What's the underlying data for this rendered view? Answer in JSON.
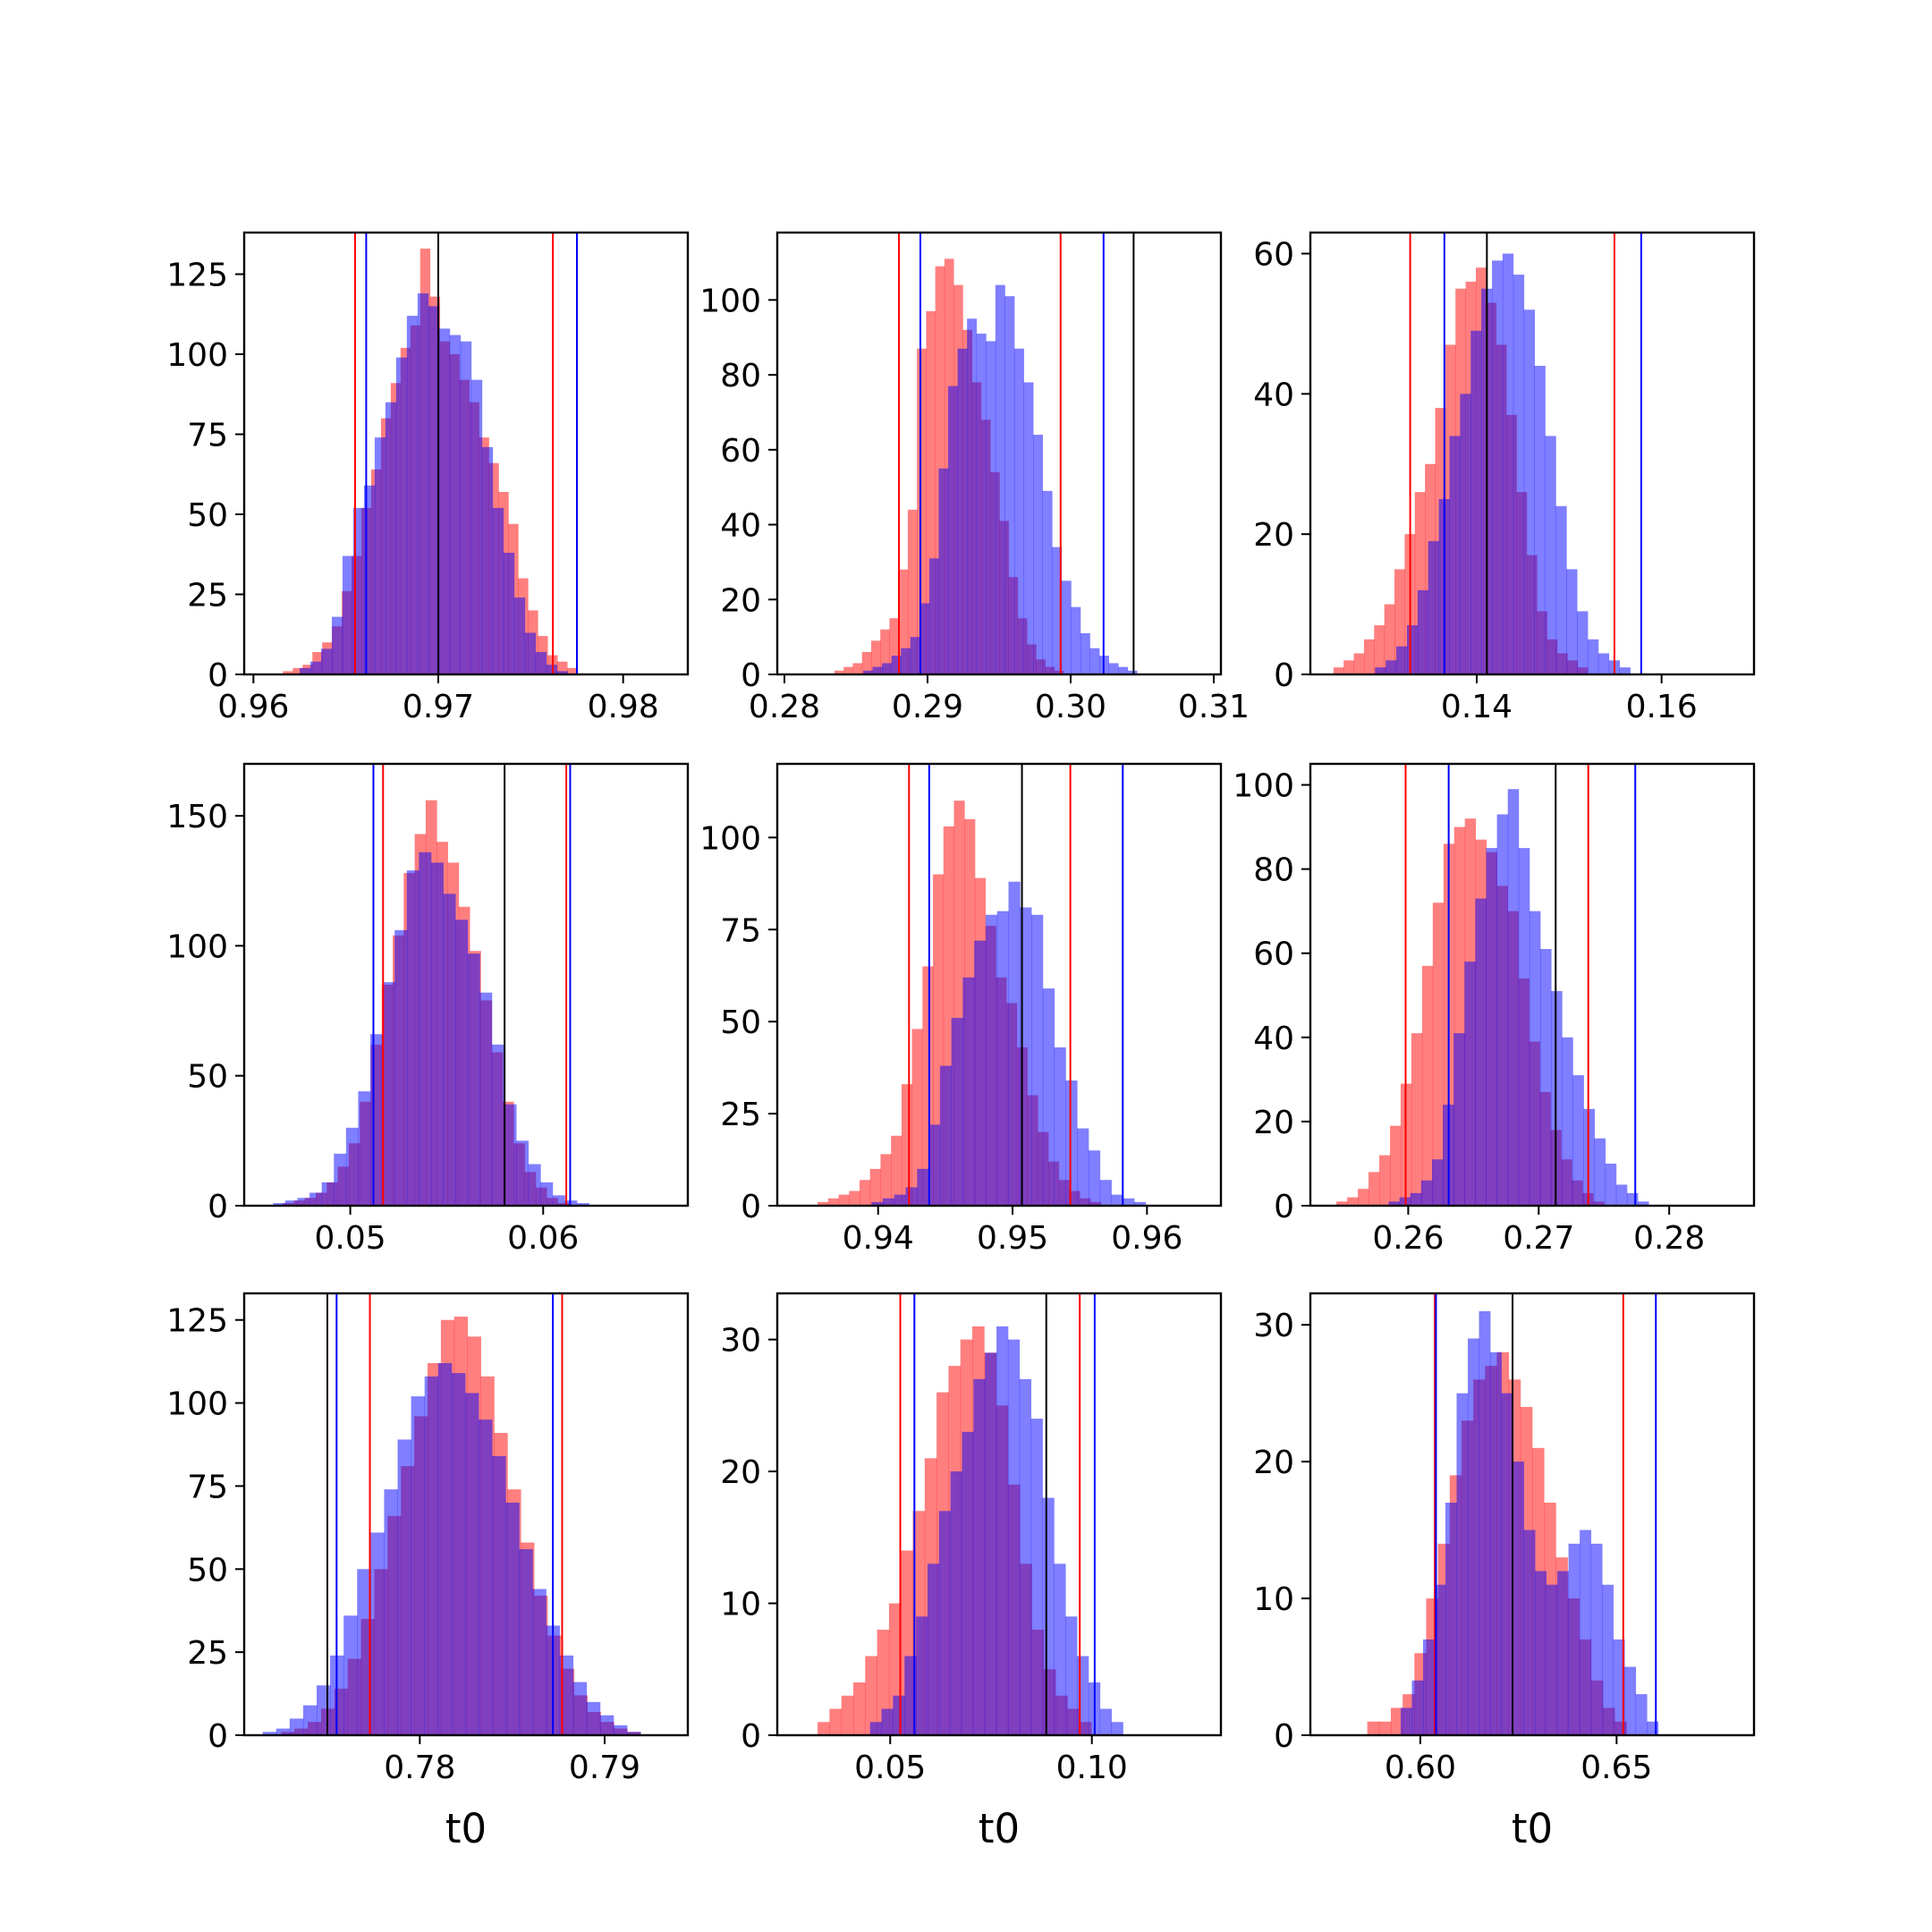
{
  "figure": {
    "background": "#ffffff"
  },
  "colors": {
    "red_hist": "#ff0000",
    "blue_hist": "#0000ff",
    "red_line": "#ff0000",
    "blue_line": "#0000ff",
    "center_line": "#000000"
  },
  "chart_data": [
    {
      "type": "bar",
      "subtype": "histogram-overlay",
      "xlim": [
        0.9595,
        0.9835
      ],
      "ylim": [
        0,
        138
      ],
      "xticks": [
        0.96,
        0.97,
        0.98
      ],
      "xtick_labels": [
        "0.96",
        "0.97",
        "0.98"
      ],
      "yticks": [
        0,
        25,
        50,
        75,
        100,
        125
      ],
      "ytick_labels": [
        "0",
        "25",
        "50",
        "75",
        "100",
        "125"
      ],
      "xlabel": "",
      "series": [
        {
          "color": "red",
          "bin_start": 0.9616,
          "bin_width": 0.00053,
          "counts": [
            1,
            2,
            3,
            7,
            10,
            15,
            26,
            37,
            52,
            64,
            80,
            91,
            102,
            109,
            133,
            118,
            104,
            100,
            92,
            85,
            74,
            66,
            57,
            47,
            30,
            20,
            12,
            6,
            4,
            2
          ]
        },
        {
          "color": "blue",
          "bin_start": 0.9625,
          "bin_width": 0.00058,
          "counts": [
            2,
            4,
            8,
            18,
            37,
            52,
            59,
            74,
            85,
            99,
            112,
            119,
            115,
            108,
            106,
            104,
            92,
            71,
            52,
            38,
            24,
            13,
            7,
            3,
            1
          ]
        }
      ],
      "vlines": [
        {
          "x": 0.9655,
          "color": "red"
        },
        {
          "x": 0.9762,
          "color": "red"
        },
        {
          "x": 0.9661,
          "color": "blue"
        },
        {
          "x": 0.9775,
          "color": "blue"
        },
        {
          "x": 0.97,
          "color": "black"
        }
      ]
    },
    {
      "type": "bar",
      "subtype": "histogram-overlay",
      "xlim": [
        0.2795,
        0.3105
      ],
      "ylim": [
        0,
        118
      ],
      "xticks": [
        0.28,
        0.29,
        0.3,
        0.31
      ],
      "xtick_labels": [
        "0.28",
        "0.29",
        "0.30",
        "0.31"
      ],
      "yticks": [
        0,
        20,
        40,
        60,
        80,
        100
      ],
      "ytick_labels": [
        "0",
        "20",
        "40",
        "60",
        "80",
        "100"
      ],
      "xlabel": "",
      "series": [
        {
          "color": "red",
          "bin_start": 0.2835,
          "bin_width": 0.00064,
          "counts": [
            1,
            2,
            3,
            6,
            9,
            12,
            15,
            28,
            44,
            87,
            97,
            109,
            111,
            104,
            92,
            78,
            68,
            54,
            41,
            26,
            15,
            8,
            4,
            2,
            1
          ]
        },
        {
          "color": "blue",
          "bin_start": 0.2855,
          "bin_width": 0.00066,
          "counts": [
            1,
            2,
            3,
            5,
            7,
            10,
            19,
            31,
            55,
            77,
            87,
            95,
            91,
            89,
            104,
            101,
            87,
            78,
            64,
            49,
            34,
            25,
            18,
            11,
            7,
            5,
            3,
            2,
            1
          ]
        }
      ],
      "vlines": [
        {
          "x": 0.288,
          "color": "red"
        },
        {
          "x": 0.2993,
          "color": "red"
        },
        {
          "x": 0.2895,
          "color": "blue"
        },
        {
          "x": 0.3023,
          "color": "blue"
        },
        {
          "x": 0.3044,
          "color": "black"
        }
      ]
    },
    {
      "type": "bar",
      "subtype": "histogram-overlay",
      "xlim": [
        0.122,
        0.17
      ],
      "ylim": [
        0,
        63
      ],
      "xticks": [
        0.14,
        0.16
      ],
      "xtick_labels": [
        "0.14",
        "0.16"
      ],
      "yticks": [
        0,
        20,
        40,
        60
      ],
      "ytick_labels": [
        "0",
        "20",
        "40",
        "60"
      ],
      "xlabel": "",
      "series": [
        {
          "color": "red",
          "bin_start": 0.1245,
          "bin_width": 0.0011,
          "counts": [
            1,
            2,
            3,
            5,
            7,
            10,
            15,
            20,
            26,
            30,
            38,
            47,
            55,
            56,
            58,
            53,
            47,
            37,
            26,
            17,
            9,
            5,
            3,
            2,
            1
          ]
        },
        {
          "color": "blue",
          "bin_start": 0.129,
          "bin_width": 0.00115,
          "counts": [
            1,
            2,
            4,
            7,
            12,
            19,
            25,
            34,
            40,
            49,
            55,
            59,
            60,
            57,
            52,
            44,
            34,
            24,
            15,
            9,
            5,
            3,
            2,
            1
          ]
        }
      ],
      "vlines": [
        {
          "x": 0.1328,
          "color": "red"
        },
        {
          "x": 0.1549,
          "color": "red"
        },
        {
          "x": 0.1365,
          "color": "blue"
        },
        {
          "x": 0.1578,
          "color": "blue"
        },
        {
          "x": 0.1411,
          "color": "black"
        }
      ]
    },
    {
      "type": "bar",
      "subtype": "histogram-overlay",
      "xlim": [
        0.0445,
        0.0675
      ],
      "ylim": [
        0,
        170
      ],
      "xticks": [
        0.05,
        0.06
      ],
      "xtick_labels": [
        "0.05",
        "0.06"
      ],
      "yticks": [
        0,
        50,
        100,
        150
      ],
      "ytick_labels": [
        "0",
        "50",
        "100",
        "150"
      ],
      "xlabel": "",
      "series": [
        {
          "color": "red",
          "bin_start": 0.0465,
          "bin_width": 0.00057,
          "counts": [
            1,
            2,
            3,
            5,
            9,
            15,
            24,
            40,
            62,
            85,
            104,
            128,
            143,
            156,
            140,
            132,
            115,
            98,
            79,
            59,
            40,
            24,
            13,
            7,
            3,
            1
          ]
        },
        {
          "color": "blue",
          "bin_start": 0.046,
          "bin_width": 0.00063,
          "counts": [
            1,
            2,
            3,
            5,
            9,
            20,
            30,
            44,
            66,
            86,
            106,
            129,
            136,
            132,
            120,
            110,
            97,
            82,
            62,
            39,
            25,
            16,
            9,
            4,
            2,
            1
          ]
        }
      ],
      "vlines": [
        {
          "x": 0.0517,
          "color": "red"
        },
        {
          "x": 0.0612,
          "color": "red"
        },
        {
          "x": 0.0512,
          "color": "blue"
        },
        {
          "x": 0.0614,
          "color": "blue"
        },
        {
          "x": 0.058,
          "color": "black"
        }
      ]
    },
    {
      "type": "bar",
      "subtype": "histogram-overlay",
      "xlim": [
        0.9325,
        0.9655
      ],
      "ylim": [
        0,
        120
      ],
      "xticks": [
        0.94,
        0.95,
        0.96
      ],
      "xtick_labels": [
        "0.94",
        "0.95",
        "0.96"
      ],
      "yticks": [
        0,
        25,
        50,
        75,
        100
      ],
      "ytick_labels": [
        "0",
        "25",
        "50",
        "75",
        "100"
      ],
      "xlabel": "",
      "series": [
        {
          "color": "red",
          "bin_start": 0.9355,
          "bin_width": 0.00078,
          "counts": [
            1,
            2,
            3,
            4,
            7,
            10,
            14,
            19,
            33,
            48,
            65,
            90,
            103,
            110,
            105,
            89,
            76,
            62,
            55,
            43,
            30,
            20,
            12,
            7,
            4,
            2,
            1
          ]
        },
        {
          "color": "blue",
          "bin_start": 0.9395,
          "bin_width": 0.00085,
          "counts": [
            1,
            2,
            3,
            5,
            10,
            22,
            38,
            51,
            62,
            72,
            79,
            80,
            88,
            81,
            79,
            59,
            43,
            34,
            21,
            15,
            7,
            3,
            2,
            1
          ]
        }
      ],
      "vlines": [
        {
          "x": 0.9423,
          "color": "red"
        },
        {
          "x": 0.9543,
          "color": "red"
        },
        {
          "x": 0.9438,
          "color": "blue"
        },
        {
          "x": 0.9582,
          "color": "blue"
        },
        {
          "x": 0.9507,
          "color": "black"
        }
      ]
    },
    {
      "type": "bar",
      "subtype": "histogram-overlay",
      "xlim": [
        0.2525,
        0.2865
      ],
      "ylim": [
        0,
        105
      ],
      "xticks": [
        0.26,
        0.27,
        0.28
      ],
      "xtick_labels": [
        "0.26",
        "0.27",
        "0.28"
      ],
      "yticks": [
        0,
        20,
        40,
        60,
        80,
        100
      ],
      "ytick_labels": [
        "0",
        "20",
        "40",
        "60",
        "80",
        "100"
      ],
      "xlabel": "",
      "series": [
        {
          "color": "red",
          "bin_start": 0.2545,
          "bin_width": 0.00082,
          "counts": [
            1,
            2,
            4,
            8,
            12,
            19,
            29,
            41,
            57,
            72,
            86,
            90,
            92,
            87,
            84,
            76,
            70,
            54,
            39,
            27,
            18,
            11,
            6,
            3,
            1
          ]
        },
        {
          "color": "blue",
          "bin_start": 0.2585,
          "bin_width": 0.00083,
          "counts": [
            1,
            2,
            3,
            6,
            11,
            24,
            41,
            58,
            73,
            85,
            93,
            99,
            85,
            70,
            61,
            51,
            40,
            31,
            23,
            16,
            10,
            5,
            3,
            1
          ]
        }
      ],
      "vlines": [
        {
          "x": 0.2598,
          "color": "red"
        },
        {
          "x": 0.2738,
          "color": "red"
        },
        {
          "x": 0.2631,
          "color": "blue"
        },
        {
          "x": 0.2774,
          "color": "blue"
        },
        {
          "x": 0.2713,
          "color": "black"
        }
      ]
    },
    {
      "type": "bar",
      "subtype": "histogram-overlay",
      "xlim": [
        0.7705,
        0.7945
      ],
      "ylim": [
        0,
        133
      ],
      "xticks": [
        0.78,
        0.79
      ],
      "xtick_labels": [
        "0.78",
        "0.79"
      ],
      "yticks": [
        0,
        25,
        50,
        75,
        100,
        125
      ],
      "ytick_labels": [
        "0",
        "25",
        "50",
        "75",
        "100",
        "125"
      ],
      "xlabel": "t0",
      "series": [
        {
          "color": "red",
          "bin_start": 0.7725,
          "bin_width": 0.00072,
          "counts": [
            1,
            2,
            4,
            8,
            14,
            23,
            35,
            50,
            66,
            81,
            96,
            112,
            125,
            126,
            120,
            108,
            91,
            74,
            58,
            42,
            30,
            20,
            12,
            7,
            4,
            2,
            1
          ]
        },
        {
          "color": "blue",
          "bin_start": 0.7715,
          "bin_width": 0.00073,
          "counts": [
            1,
            2,
            5,
            9,
            15,
            24,
            36,
            50,
            61,
            74,
            89,
            102,
            108,
            112,
            109,
            103,
            95,
            84,
            70,
            56,
            44,
            33,
            24,
            16,
            10,
            6,
            3,
            1
          ]
        }
      ],
      "vlines": [
        {
          "x": 0.7773,
          "color": "red"
        },
        {
          "x": 0.7877,
          "color": "red"
        },
        {
          "x": 0.7755,
          "color": "blue"
        },
        {
          "x": 0.7872,
          "color": "blue"
        },
        {
          "x": 0.775,
          "color": "black"
        }
      ]
    },
    {
      "type": "bar",
      "subtype": "histogram-overlay",
      "xlim": [
        0.022,
        0.132
      ],
      "ylim": [
        0,
        33.5
      ],
      "xticks": [
        0.05,
        0.1
      ],
      "xtick_labels": [
        "0.05",
        "0.10"
      ],
      "yticks": [
        0,
        10,
        20,
        30
      ],
      "ytick_labels": [
        "0",
        "10",
        "20",
        "30"
      ],
      "xlabel": "t0",
      "series": [
        {
          "color": "red",
          "bin_start": 0.032,
          "bin_width": 0.00295,
          "counts": [
            1,
            2,
            3,
            4,
            6,
            8,
            10,
            14,
            17,
            21,
            26,
            28,
            30,
            31,
            29,
            25,
            19,
            13,
            8,
            5,
            3,
            2,
            1
          ]
        },
        {
          "color": "blue",
          "bin_start": 0.045,
          "bin_width": 0.00285,
          "counts": [
            1,
            2,
            3,
            6,
            9,
            13,
            17,
            20,
            23,
            27,
            29,
            31,
            30,
            27,
            24,
            18,
            13,
            9,
            6,
            4,
            2,
            1
          ]
        }
      ],
      "vlines": [
        {
          "x": 0.0525,
          "color": "red"
        },
        {
          "x": 0.097,
          "color": "red"
        },
        {
          "x": 0.056,
          "color": "blue"
        },
        {
          "x": 0.1007,
          "color": "blue"
        },
        {
          "x": 0.0887,
          "color": "black"
        }
      ]
    },
    {
      "type": "bar",
      "subtype": "histogram-overlay",
      "xlim": [
        0.572,
        0.685
      ],
      "ylim": [
        0,
        32.3
      ],
      "xticks": [
        0.6,
        0.65
      ],
      "xtick_labels": [
        "0.60",
        "0.65"
      ],
      "yticks": [
        0,
        10,
        20,
        30
      ],
      "ytick_labels": [
        "0",
        "10",
        "20",
        "30"
      ],
      "xlabel": "t0",
      "series": [
        {
          "color": "red",
          "bin_start": 0.5865,
          "bin_width": 0.003,
          "counts": [
            1,
            1,
            2,
            3,
            6,
            10,
            14,
            19,
            23,
            26,
            27,
            28,
            26,
            24,
            21,
            17,
            13,
            10,
            7,
            4,
            2,
            1
          ]
        },
        {
          "color": "blue",
          "bin_start": 0.595,
          "bin_width": 0.00285,
          "counts": [
            2,
            4,
            7,
            11,
            17,
            25,
            29,
            31,
            28,
            25,
            20,
            15,
            12,
            11,
            12,
            14,
            15,
            14,
            11,
            7,
            5,
            3,
            1
          ]
        }
      ],
      "vlines": [
        {
          "x": 0.6037,
          "color": "red"
        },
        {
          "x": 0.6517,
          "color": "red"
        },
        {
          "x": 0.604,
          "color": "blue"
        },
        {
          "x": 0.66,
          "color": "blue"
        },
        {
          "x": 0.6235,
          "color": "black"
        }
      ]
    }
  ]
}
